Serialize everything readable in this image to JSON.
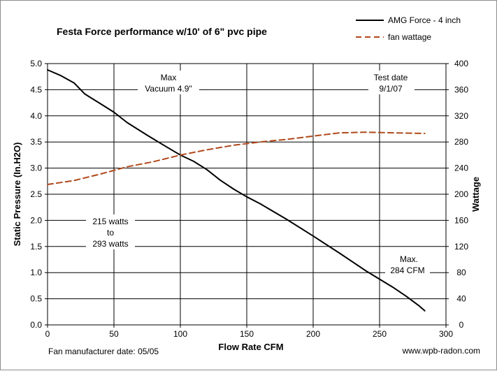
{
  "chart_data": {
    "type": "line",
    "title": "Festa Force performance w/10' of 6\" pvc pipe",
    "xlabel": "Flow Rate  CFM",
    "ylabel": "Static Pressure (In.H2O)",
    "y2label": "Wattage",
    "xlim": [
      0,
      300
    ],
    "ylim": [
      0,
      5
    ],
    "y2lim": [
      0,
      400
    ],
    "x_ticks": [
      "0",
      "50",
      "100",
      "150",
      "200",
      "250",
      "300"
    ],
    "y_ticks": [
      "0.0",
      "0.5",
      "1.0",
      "1.5",
      "2.0",
      "2.5",
      "3.0",
      "3.5",
      "4.0",
      "4.5",
      "5.0"
    ],
    "y2_ticks": [
      "0",
      "40",
      "80",
      "120",
      "160",
      "200",
      "240",
      "280",
      "320",
      "360",
      "400"
    ],
    "grid": true,
    "legend_position": "top-right",
    "series": [
      {
        "name": "AMG Force - 4 inch",
        "axis": "left",
        "color": "#000000",
        "style": "solid",
        "x": [
          0,
          10,
          20,
          28,
          40,
          50,
          60,
          75,
          90,
          100,
          110,
          120,
          130,
          140,
          150,
          160,
          180,
          200,
          220,
          240,
          260,
          270,
          280,
          284
        ],
        "y": [
          4.88,
          4.77,
          4.63,
          4.42,
          4.23,
          4.07,
          3.87,
          3.63,
          3.4,
          3.25,
          3.13,
          2.97,
          2.77,
          2.6,
          2.45,
          2.32,
          2.02,
          1.7,
          1.37,
          1.03,
          0.72,
          0.55,
          0.36,
          0.27
        ]
      },
      {
        "name": "fan wattage",
        "axis": "right",
        "color": "#b0481a",
        "style": "dashed",
        "x": [
          0,
          20,
          40,
          60,
          80,
          100,
          120,
          140,
          160,
          180,
          200,
          220,
          240,
          260,
          284
        ],
        "y": [
          215,
          221,
          231,
          242,
          250,
          260,
          268,
          275,
          280,
          284,
          289,
          294,
          295,
          294,
          293
        ]
      }
    ],
    "annotations": [
      {
        "id": "max-vacuum",
        "lines": [
          "Max",
          "Vacuum  4.9\""
        ]
      },
      {
        "id": "test-date",
        "lines": [
          "Test date",
          "9/1/07"
        ]
      },
      {
        "id": "watts-range",
        "lines": [
          "215 watts",
          "to",
          "293 watts"
        ]
      },
      {
        "id": "max-cfm",
        "lines": [
          "Max.",
          "284 CFM"
        ]
      }
    ]
  },
  "footer": {
    "left": "Fan manufacturer date: 05/05",
    "right": "www.wpb-radon.com"
  }
}
